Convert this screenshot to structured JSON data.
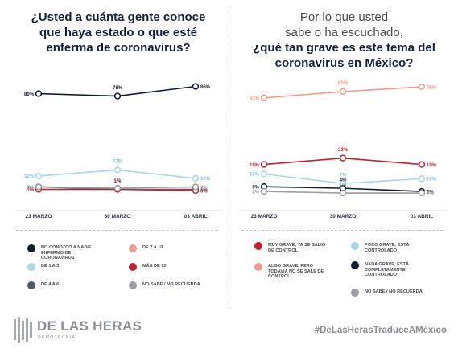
{
  "left": {
    "title_lines": [
      "¿Usted a cuánta gente conoce",
      "que haya estado o que esté",
      "enferma de coronavirus?"
    ]
  },
  "right": {
    "title_light_lines": [
      "Por lo que usted",
      "sabe o ha escuchado,"
    ],
    "title_bold_lines": [
      "¿qué tan grave es este tema del",
      "coronavirus en México?"
    ]
  },
  "footer": {
    "logo_text": "DE LAS HERAS",
    "logo_sub": "DEMOTECNIA",
    "hashtag": "#DeLasHerasTraduceAMéxico"
  },
  "chart_data": [
    {
      "type": "line",
      "categories": [
        "23 MARZO",
        "30 MARZO",
        "03 ABRIL"
      ],
      "series": [
        {
          "name": "NO CONOZCO A NADIE ENFERMO DE CORONAVIRUS",
          "values": [
            80,
            78,
            86
          ],
          "labels": [
            "80%",
            "78%",
            "86%"
          ],
          "color": "#111a2e"
        },
        {
          "name": "DE 1 A 3",
          "values": [
            12,
            17,
            10
          ],
          "labels": [
            "12%",
            "17%",
            "10%"
          ],
          "color": "#a9d8e6"
        },
        {
          "name": "DE 4 A 6",
          "values": [
            3,
            1,
            1
          ],
          "labels": [
            "3%",
            "1%",
            "1%"
          ],
          "color": "#4e5a6a"
        },
        {
          "name": "DE 7 A 10",
          "values": [
            1,
            1,
            0
          ],
          "labels": [
            "1%",
            "1%",
            "0%"
          ],
          "color": "#f29a8c"
        },
        {
          "name": "MÁS DE 10",
          "values": [
            1,
            1,
            0
          ],
          "labels": [
            "1%",
            "1%",
            "0%"
          ],
          "color": "#c8202f"
        },
        {
          "name": "NO SABE / NO RECUERDA",
          "values": [
            3,
            2,
            3
          ],
          "labels": [
            "3%",
            "2%",
            "3%"
          ],
          "color": "#9c9ca4"
        }
      ]
    },
    {
      "type": "line",
      "categories": [
        "23 MARZO",
        "30 MARZO",
        "03 ABRIL"
      ],
      "series": [
        {
          "name": "MUY GRAVE, YA SE SALIÓ DE CONTROL",
          "values": [
            19,
            23,
            19
          ],
          "labels": [
            "19%",
            "23%",
            "19%"
          ],
          "color": "#c8202f"
        },
        {
          "name": "ALGO GRAVE, PERO TODAVÍA NO SE SALE DE CONTROL",
          "values": [
            61,
            65,
            68
          ],
          "labels": [
            "61%",
            "65%",
            "68%"
          ],
          "color": "#f29a8c"
        },
        {
          "name": "POCO GRAVE, ESTÁ CONTROLADO",
          "values": [
            13,
            7,
            10
          ],
          "labels": [
            "13%",
            "7%",
            "10%"
          ],
          "color": "#a9d8e6"
        },
        {
          "name": "NADA GRAVE, ESTÁ COMPLETAMENTE CONTROLADO",
          "values": [
            5,
            4,
            2
          ],
          "labels": [
            "5%",
            "4%",
            "2%"
          ],
          "color": "#111a2e"
        },
        {
          "name": "NO SABE / NO RECUERDA",
          "values": [
            2,
            1,
            1
          ],
          "labels": [
            "2%",
            "1%",
            "1%"
          ],
          "color": "#9c9ca4"
        }
      ]
    }
  ]
}
